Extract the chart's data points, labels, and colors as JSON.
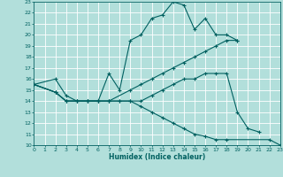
{
  "xlabel": "Humidex (Indice chaleur)",
  "bg_color": "#b2dfdb",
  "line_color": "#006060",
  "grid_color": "#ffffff",
  "xlim": [
    0,
    23
  ],
  "ylim": [
    10,
    23
  ],
  "line1": {
    "x": [
      0,
      2,
      3,
      4,
      5,
      6,
      7,
      8,
      9,
      10,
      11,
      12,
      13,
      14,
      15,
      16,
      17,
      18,
      19
    ],
    "y": [
      15.5,
      16.0,
      14.5,
      14.0,
      14.0,
      14.0,
      16.5,
      15.0,
      19.5,
      20.0,
      21.5,
      21.8,
      23.0,
      22.7,
      20.5,
      21.5,
      20.0,
      20.0,
      19.5
    ]
  },
  "line2": {
    "x": [
      0,
      2,
      3,
      4,
      5,
      6,
      7,
      9,
      10,
      11,
      12,
      13,
      14,
      15,
      16,
      17,
      18,
      19
    ],
    "y": [
      15.5,
      14.8,
      14.0,
      14.0,
      14.0,
      14.0,
      14.0,
      15.0,
      15.5,
      16.0,
      16.5,
      17.0,
      17.5,
      18.0,
      18.5,
      19.0,
      19.5,
      19.5
    ]
  },
  "line3": {
    "x": [
      0,
      2,
      3,
      4,
      5,
      6,
      7,
      8,
      9,
      10,
      11,
      12,
      13,
      14,
      15,
      16,
      17,
      18,
      19,
      20,
      21
    ],
    "y": [
      15.5,
      14.8,
      14.0,
      14.0,
      14.0,
      14.0,
      14.0,
      14.0,
      14.0,
      14.0,
      14.5,
      15.0,
      15.5,
      16.0,
      16.0,
      16.5,
      16.5,
      16.5,
      13.0,
      11.5,
      11.2
    ]
  },
  "line4": {
    "x": [
      0,
      2,
      3,
      4,
      5,
      6,
      7,
      8,
      9,
      10,
      11,
      12,
      13,
      14,
      15,
      16,
      17,
      18,
      22,
      23
    ],
    "y": [
      15.5,
      14.8,
      14.0,
      14.0,
      14.0,
      14.0,
      14.0,
      14.0,
      14.0,
      13.5,
      13.0,
      12.5,
      12.0,
      11.5,
      11.0,
      10.8,
      10.5,
      10.5,
      10.5,
      10.0
    ]
  }
}
